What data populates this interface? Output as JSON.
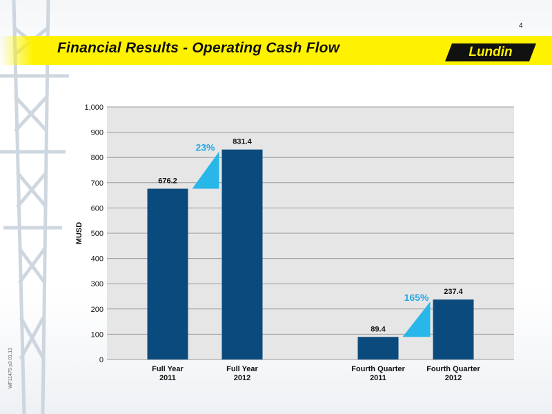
{
  "page_number": "4",
  "title": "Financial Results - Operating Cash Flow",
  "logo_text": "Lundin",
  "footer_code": "WF11475 p3 01.13",
  "colors": {
    "bar": "#0b4a7d",
    "accent": "#29b6e8",
    "title_band": "#fff200",
    "plot_bg": "#e6e6e6"
  },
  "chart_data": {
    "type": "bar",
    "ylabel": "MUSD",
    "ylim": [
      0,
      1000
    ],
    "yticks": [
      0,
      100,
      200,
      300,
      400,
      500,
      600,
      700,
      800,
      900,
      1000
    ],
    "ytick_labels": [
      "0",
      "100",
      "200",
      "300",
      "400",
      "500",
      "600",
      "700",
      "800",
      "900",
      "1,000"
    ],
    "grid": true,
    "bars": [
      {
        "category": [
          "Full Year",
          "2011"
        ],
        "value": 676.2,
        "label": "676.2"
      },
      {
        "category": [
          "Full Year",
          "2012"
        ],
        "value": 831.4,
        "label": "831.4"
      },
      {
        "category": [
          "Fourth Quarter",
          "2011"
        ],
        "value": 89.4,
        "label": "89.4"
      },
      {
        "category": [
          "Fourth Quarter",
          "2012"
        ],
        "value": 237.4,
        "label": "237.4"
      }
    ],
    "annotations": [
      {
        "text": "23%",
        "from": 0,
        "to": 1
      },
      {
        "text": "165%",
        "from": 2,
        "to": 3
      }
    ]
  }
}
